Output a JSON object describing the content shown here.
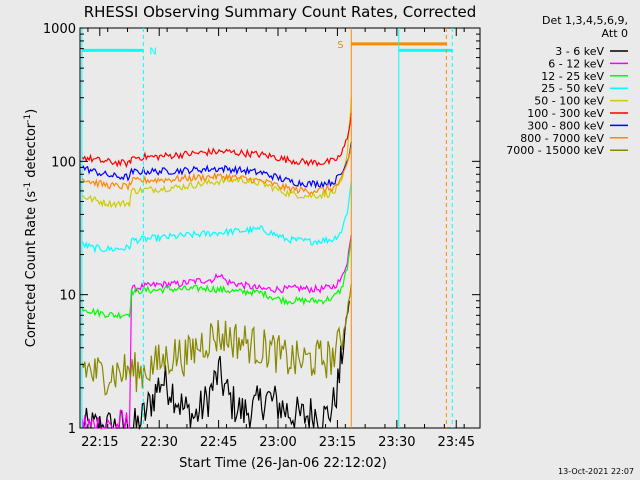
{
  "chart_data": {
    "type": "line",
    "title": "RHESSI Observing Summary Count Rates, Corrected",
    "xlabel": "Start Time (26-Jan-06 22:12:02)",
    "ylabel_main": "Corrected Count Rate (s",
    "ylabel_sup1": "-1",
    "ylabel_mid": " detector",
    "ylabel_sup2": "-1",
    "ylabel_end": ")",
    "yscale": "log",
    "ylim": [
      1,
      1000
    ],
    "xlim_min": [
      13.0,
      114.0
    ],
    "y_ticks": [
      {
        "value": 1,
        "label": "1"
      },
      {
        "value": 10,
        "label": "10"
      },
      {
        "value": 100,
        "label": "100"
      },
      {
        "value": 1000,
        "label": "1000"
      }
    ],
    "x_ticks": [
      {
        "value": 18,
        "label": "22:15"
      },
      {
        "value": 33,
        "label": "22:30"
      },
      {
        "value": 48,
        "label": "22:45"
      },
      {
        "value": 63,
        "label": "23:00"
      },
      {
        "value": 78,
        "label": "23:15"
      },
      {
        "value": 93,
        "label": "23:30"
      },
      {
        "value": 108,
        "label": "23:45"
      }
    ],
    "legend_placement": "right",
    "legend_header": [
      "Det 1,3,4,5,6,9,",
      "Att 0"
    ],
    "series": [
      {
        "name": "3 - 6 keV",
        "color": "#000000",
        "x": [
          13.5,
          22.5,
          26.5,
          28.0,
          31.0,
          33.5,
          36.0,
          39.0,
          42.0,
          45.0,
          48.0,
          51.0,
          54.0,
          57.0,
          60.0,
          63.0,
          66.0,
          69.0,
          72.0,
          75.0,
          77.0,
          78.5,
          79.5,
          81.0
        ],
        "y": [
          1.0,
          1.0,
          1.0,
          1.05,
          1.6,
          2.3,
          2.0,
          1.4,
          1.2,
          1.6,
          2.6,
          1.6,
          1.3,
          1.4,
          1.7,
          1.5,
          1.3,
          1.2,
          1.3,
          1.2,
          1.5,
          2.4,
          4.5,
          9.0
        ]
      },
      {
        "name": "6 - 12 keV",
        "color": "#ff00ff",
        "x": [
          13.5,
          16.0,
          18.0,
          20.0,
          22.0,
          24.0,
          25.5,
          26.0,
          29.0,
          32.0,
          35.0,
          38.0,
          41.0,
          44.0,
          47.0,
          48.0,
          50.0,
          53.0,
          56.0,
          59.0,
          62.0,
          65.0,
          68.0,
          71.0,
          74.0,
          77.0,
          79.0,
          80.5,
          81.5
        ],
        "y": [
          1.0,
          1.0,
          1.0,
          1.0,
          1.0,
          1.0,
          1.0,
          11.0,
          11.5,
          11.8,
          12.0,
          12.0,
          12.5,
          12.8,
          13.0,
          14.5,
          12.5,
          12.0,
          11.5,
          11.0,
          11.0,
          11.0,
          11.2,
          11.0,
          11.0,
          11.5,
          13.0,
          18.0,
          28.0
        ]
      },
      {
        "name": "12 - 25 keV",
        "color": "#00ff00",
        "x": [
          13.5,
          16.0,
          19.0,
          22.0,
          25.5,
          26.0,
          29.0,
          32.0,
          35.0,
          38.0,
          41.0,
          44.0,
          47.0,
          50.0,
          53.0,
          56.0,
          59.0,
          62.0,
          65.0,
          68.0,
          71.0,
          74.0,
          77.0,
          79.0,
          80.5,
          81.5
        ],
        "y": [
          8.0,
          7.5,
          7.2,
          7.0,
          7.2,
          10.5,
          10.8,
          10.8,
          11.0,
          11.0,
          11.0,
          11.2,
          11.0,
          10.8,
          10.5,
          10.5,
          10.3,
          9.5,
          9.0,
          9.0,
          9.0,
          9.0,
          9.5,
          11.0,
          16.0,
          26.0
        ]
      },
      {
        "name": "25 - 50 keV",
        "color": "#00ffff",
        "x": [
          13.5,
          16.0,
          19.0,
          22.0,
          25.5,
          26.0,
          29.0,
          32.0,
          35.0,
          38.0,
          41.0,
          44.0,
          47.0,
          50.0,
          53.0,
          56.0,
          59.0,
          62.0,
          65.0,
          68.0,
          71.0,
          74.0,
          77.0,
          79.0,
          80.5,
          81.5
        ],
        "y": [
          24.0,
          22.5,
          22.0,
          22.0,
          22.5,
          25.5,
          26.0,
          26.5,
          27.0,
          27.5,
          28.0,
          28.5,
          29.0,
          29.5,
          30.0,
          30.5,
          31.0,
          28.5,
          26.0,
          25.5,
          25.0,
          25.5,
          26.0,
          30.0,
          42.0,
          70.0
        ]
      },
      {
        "name": "50 - 100 keV",
        "color": "#cccc00",
        "x": [
          13.5,
          16.0,
          19.0,
          22.0,
          25.5,
          26.0,
          29.0,
          32.0,
          35.0,
          38.0,
          41.0,
          44.0,
          47.0,
          50.0,
          53.0,
          56.0,
          59.0,
          62.0,
          65.0,
          68.0,
          71.0,
          74.0,
          77.0,
          79.0,
          80.5,
          81.5
        ],
        "y": [
          55.0,
          52.0,
          49.0,
          48.0,
          48.5,
          60.0,
          61.0,
          62.0,
          63.0,
          64.0,
          66.0,
          68.0,
          70.0,
          72.0,
          73.0,
          71.0,
          68.0,
          63.0,
          58.0,
          56.0,
          55.0,
          56.0,
          58.0,
          68.0,
          110.0,
          300.0
        ]
      },
      {
        "name": "100 - 300 keV",
        "color": "#ff0000",
        "x": [
          13.5,
          16.0,
          19.0,
          22.0,
          25.5,
          26.0,
          29.0,
          32.0,
          35.0,
          38.0,
          41.0,
          44.0,
          47.0,
          50.0,
          53.0,
          56.0,
          59.0,
          62.0,
          65.0,
          68.0,
          71.0,
          74.0,
          77.0,
          79.0,
          80.5,
          81.5
        ],
        "y": [
          108.0,
          104.0,
          100.0,
          98.0,
          96.0,
          106.0,
          108.0,
          108.0,
          110.0,
          112.0,
          114.0,
          116.0,
          118.0,
          118.0,
          116.0,
          114.0,
          112.0,
          108.0,
          103.0,
          100.0,
          98.0,
          98.0,
          100.0,
          112.0,
          150.0,
          230.0
        ]
      },
      {
        "name": "300 - 800 keV",
        "color": "#0000ff",
        "x": [
          13.5,
          16.0,
          19.0,
          22.0,
          25.5,
          26.0,
          29.0,
          32.0,
          35.0,
          38.0,
          41.0,
          44.0,
          47.0,
          50.0,
          53.0,
          56.0,
          59.0,
          62.0,
          65.0,
          68.0,
          71.0,
          74.0,
          77.0,
          79.0,
          80.5,
          81.5
        ],
        "y": [
          90.0,
          85.0,
          80.0,
          77.0,
          76.0,
          83.0,
          84.0,
          84.0,
          84.5,
          85.0,
          86.0,
          87.0,
          88.0,
          88.0,
          86.0,
          84.0,
          82.0,
          77.0,
          72.0,
          69.0,
          68.0,
          68.0,
          70.0,
          80.0,
          100.0,
          140.0
        ]
      },
      {
        "name": "800 - 7000 keV",
        "color": "#ff8800",
        "x": [
          13.5,
          16.0,
          19.0,
          22.0,
          25.5,
          26.0,
          29.0,
          32.0,
          35.0,
          38.0,
          41.0,
          44.0,
          47.0,
          50.0,
          53.0,
          56.0,
          59.0,
          62.0,
          65.0,
          68.0,
          71.0,
          74.0,
          77.0,
          79.0,
          80.5,
          81.5
        ],
        "y": [
          75.0,
          70.0,
          67.0,
          65.0,
          65.0,
          71.0,
          72.0,
          72.5,
          73.0,
          74.0,
          75.0,
          76.0,
          77.0,
          77.0,
          75.0,
          73.0,
          71.0,
          67.0,
          63.0,
          61.0,
          60.0,
          61.0,
          63.0,
          72.0,
          95.0,
          130.0
        ]
      },
      {
        "name": "7000 - 15000 keV",
        "color": "#888800",
        "x": [
          13.5,
          16.0,
          19.0,
          22.0,
          25.0,
          28.0,
          31.0,
          34.0,
          37.0,
          40.0,
          43.0,
          46.0,
          49.0,
          52.0,
          55.0,
          58.0,
          61.0,
          64.0,
          67.0,
          70.0,
          73.0,
          76.0,
          78.0,
          80.0,
          81.5
        ],
        "y": [
          3.0,
          2.6,
          2.5,
          2.6,
          2.7,
          2.6,
          2.9,
          3.2,
          3.6,
          3.4,
          4.2,
          4.8,
          5.0,
          4.6,
          4.4,
          4.0,
          3.9,
          3.4,
          3.2,
          3.2,
          3.3,
          3.3,
          3.8,
          6.0,
          12.0
        ]
      }
    ],
    "annotations": {
      "N": {
        "label": "N",
        "color": "#00ffff",
        "x_range": [
          13.5,
          29.0
        ],
        "y": 680,
        "dashed_x": 29.0
      },
      "S": {
        "label": "S",
        "color": "#ff8800",
        "x_range": [
          81.5,
          105.5
        ],
        "y": 760,
        "dashed_x": 105.5
      },
      "orange_lines_x": [
        81.5
      ],
      "cyan_n_line2_range": [
        93.5,
        107.0
      ],
      "cyan_solid_x": [
        13.5,
        93.5
      ],
      "cyan_dashed_x": [
        107.0
      ]
    }
  },
  "footer": {
    "date": "13-Oct-2021 22:07"
  }
}
